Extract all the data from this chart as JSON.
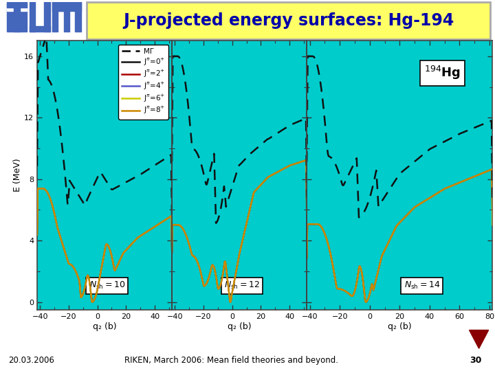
{
  "title": "J-projected energy surfaces: Hg-194",
  "title_bg": "#FFFF66",
  "title_color": "#0000AA",
  "main_bg": "#FFFFFF",
  "plot_bg": "#00CCCC",
  "footer_bg": "#33CC33",
  "footer_text": "RIKEN, March 2006: Mean field theories and beyond.",
  "footer_date": "20.03.2006",
  "footer_page": "30",
  "ylabel": "E (MeV)",
  "xlabel": "q₂ (b)",
  "ylim": [
    -0.5,
    17
  ],
  "yticks": [
    0,
    4,
    8,
    12,
    16
  ],
  "line_colors_mf": "#111111",
  "line_colors_J0": "#111111",
  "line_colors_J2": "#AA0000",
  "line_colors_J4": "#5555CC",
  "line_colors_J6": "#CCCC00",
  "line_colors_J8": "#CC8800",
  "tum_blue": "#4466BB",
  "nuclide_label": "$^{194}$Hg",
  "panel_labels": [
    "N_{sh}=10",
    "N_{sh}=12",
    "N_{sh}=14"
  ],
  "xticks1": [
    -40,
    -20,
    0,
    20,
    40
  ],
  "xticks2": [
    -40,
    -20,
    0,
    20,
    40
  ],
  "xticks3": [
    -40,
    -20,
    0,
    20,
    40,
    60,
    80
  ],
  "xlim1": [
    -42,
    52
  ],
  "xlim2": [
    -42,
    52
  ],
  "xlim3": [
    -42,
    82
  ]
}
